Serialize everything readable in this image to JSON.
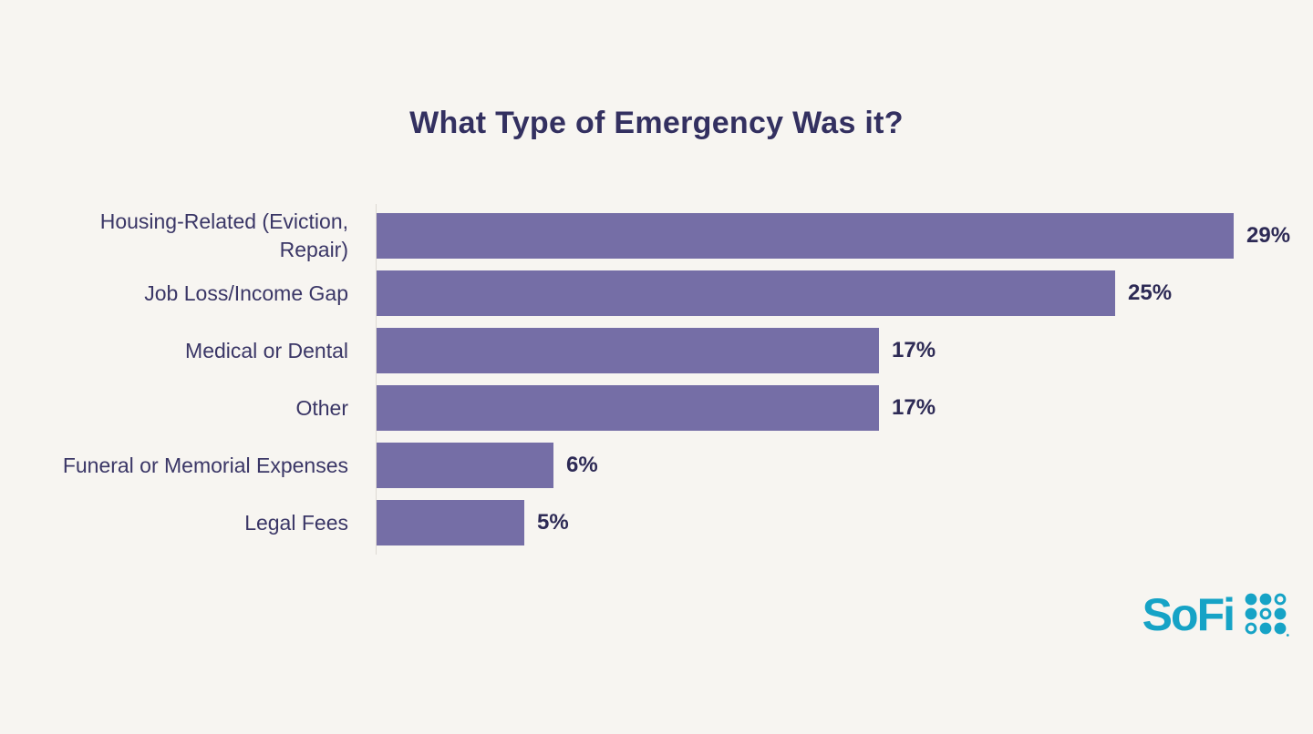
{
  "chart_data": {
    "type": "bar",
    "orientation": "horizontal",
    "title": "What Type of Emergency Was it?",
    "categories": [
      "Housing-Related (Eviction, Repair)",
      "Job Loss/Income Gap",
      "Medical or Dental",
      "Other",
      "Funeral or Memorial Expenses",
      "Legal Fees"
    ],
    "display_labels": [
      "Housing-Related (Eviction,\nRepair)",
      "Job Loss/Income Gap",
      "Medical or Dental",
      "Other",
      "Funeral or Memorial Expenses",
      "Legal Fees"
    ],
    "values": [
      29,
      25,
      17,
      17,
      6,
      5
    ],
    "value_labels": [
      "29%",
      "25%",
      "17%",
      "17%",
      "6%",
      "5%"
    ],
    "unit": "%",
    "xlim": [
      0,
      29
    ],
    "grid": false,
    "legend": false,
    "bar_color": "#756EA6",
    "category_label_color": "#3A3666",
    "value_label_color": "#2D2A55",
    "title_color": "#333060",
    "background_color": "#F7F5F1"
  },
  "footer": {
    "brand": "SoFi",
    "logo_color": "#16A3C6",
    "logo_icon": "sofi-dot-grid-icon"
  }
}
